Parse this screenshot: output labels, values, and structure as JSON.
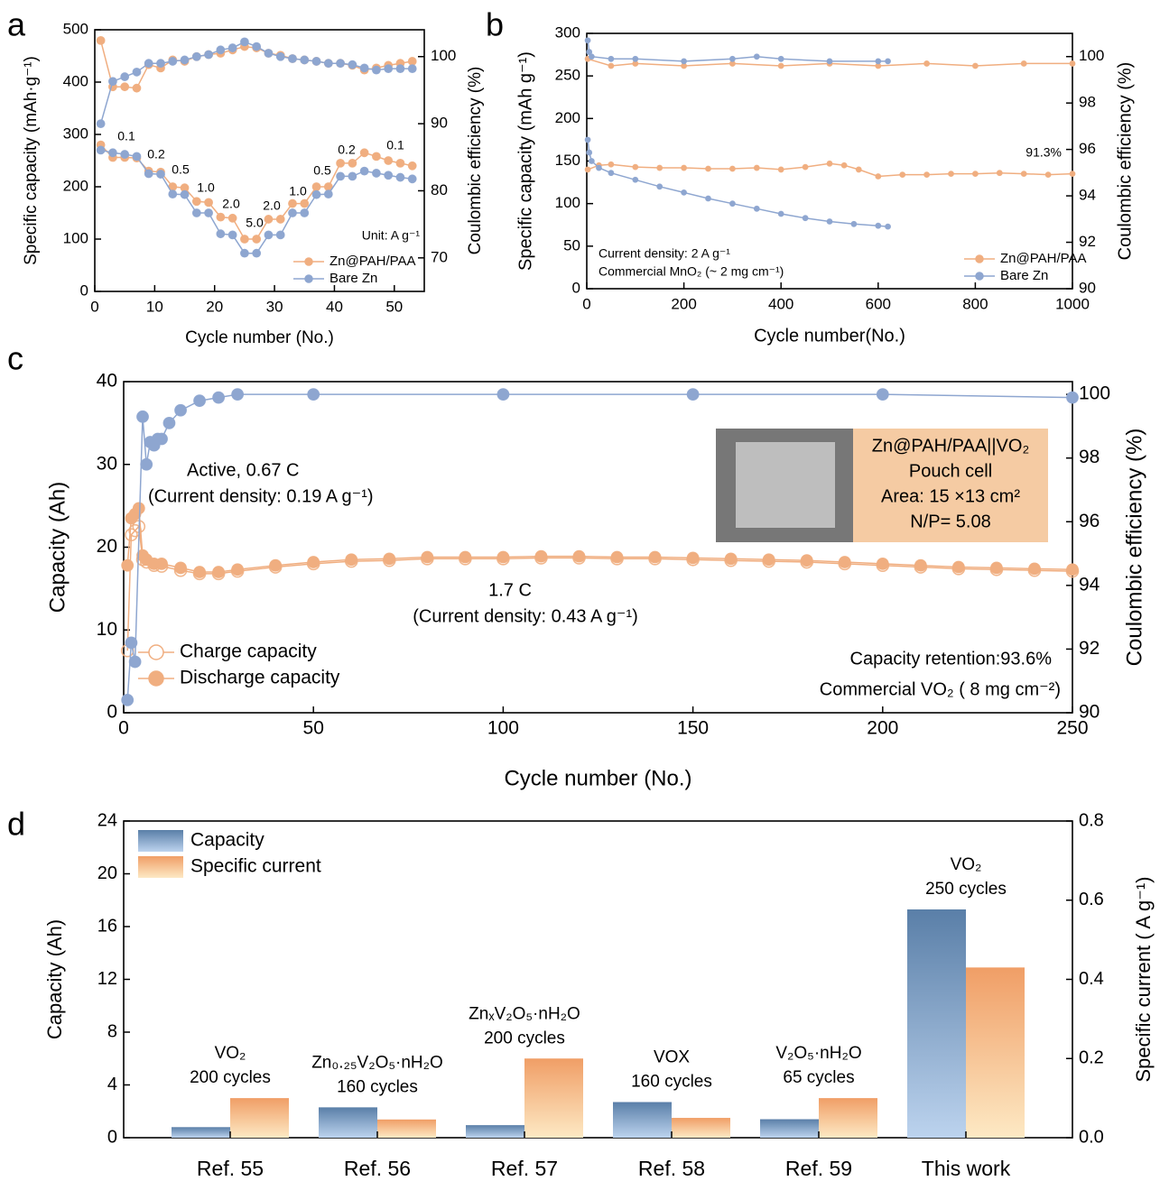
{
  "chart_data": [
    {
      "type": "line",
      "panel": "a",
      "x_label": "Cycle number (No.)",
      "y_label": "Specific capacity (mAh·g⁻¹)",
      "y2_label": "Coulombic efficiency (%)",
      "xlim": [
        0,
        55
      ],
      "xticks": [
        0,
        10,
        20,
        30,
        40,
        50
      ],
      "ylim": [
        0,
        500
      ],
      "yticks": [
        0,
        100,
        200,
        300,
        400,
        500
      ],
      "y2lim": [
        65,
        104
      ],
      "y2ticks": [
        70,
        80,
        90,
        100
      ],
      "legend": "lower right",
      "annotations": [
        "0.1",
        "0.2",
        "0.5",
        "1.0",
        "2.0",
        "5.0",
        "2.0",
        "1.0",
        "0.5",
        "0.2",
        "0.1",
        "Unit: A g⁻¹"
      ],
      "series": [
        {
          "name": "Zn@PAH/PAA",
          "color": "#f0ae80",
          "marker": "filled",
          "x": [
            1,
            3,
            5,
            7,
            9,
            11,
            13,
            15,
            17,
            19,
            21,
            23,
            25,
            27,
            29,
            31,
            33,
            35,
            37,
            39,
            41,
            43,
            45,
            47,
            49,
            51,
            53
          ],
          "values": [
            280,
            256,
            256,
            255,
            230,
            228,
            200,
            198,
            172,
            170,
            142,
            140,
            100,
            100,
            138,
            138,
            168,
            168,
            200,
            200,
            245,
            245,
            265,
            258,
            250,
            245,
            240
          ]
        },
        {
          "name": "Bare Zn",
          "color": "#8ea6d0",
          "marker": "filled",
          "x": [
            1,
            3,
            5,
            7,
            9,
            11,
            13,
            15,
            17,
            19,
            21,
            23,
            25,
            27,
            29,
            31,
            33,
            35,
            37,
            39,
            41,
            43,
            45,
            47,
            49,
            51,
            53
          ],
          "values": [
            270,
            265,
            262,
            258,
            225,
            224,
            186,
            185,
            150,
            150,
            110,
            108,
            73,
            73,
            108,
            108,
            150,
            150,
            185,
            186,
            220,
            220,
            230,
            226,
            222,
            218,
            215
          ]
        },
        {
          "color": "#f0ae80",
          "marker": "filled",
          "axis": "y2",
          "x": [
            1,
            3,
            5,
            7,
            9,
            11,
            13,
            15,
            17,
            19,
            21,
            23,
            25,
            27,
            29,
            31,
            33,
            35,
            37,
            39,
            41,
            43,
            45,
            47,
            49,
            51,
            53
          ],
          "values": [
            102.4,
            95.5,
            95.5,
            95.3,
            98.8,
            98.3,
            99.5,
            99.3,
            100,
            100.3,
            100.5,
            101,
            101.5,
            101.3,
            100.5,
            100.2,
            99.7,
            99.5,
            99.3,
            99,
            99,
            98.7,
            98,
            98.3,
            98.7,
            99,
            99.3
          ]
        },
        {
          "color": "#8ea6d0",
          "marker": "filled",
          "axis": "y2",
          "x": [
            1,
            3,
            5,
            7,
            9,
            11,
            13,
            15,
            17,
            19,
            21,
            23,
            25,
            27,
            29,
            31,
            33,
            35,
            37,
            39,
            41,
            43,
            45,
            47,
            49,
            51,
            53
          ],
          "values": [
            90,
            96.3,
            97,
            97.7,
            99,
            99,
            99.3,
            99.5,
            100,
            100.3,
            101,
            101.3,
            102.2,
            101.5,
            100.5,
            100,
            99.7,
            99.5,
            99.3,
            99,
            99,
            98.8,
            98.3,
            98,
            98.2,
            98.2,
            98.2
          ]
        }
      ]
    },
    {
      "type": "line",
      "panel": "b",
      "x_label": "Cycle number(No.)",
      "y_label": "Specific capacity (mAh g⁻¹)",
      "y2_label": "Coulombic efficiency (%)",
      "xlim": [
        0,
        1000
      ],
      "xticks": [
        0,
        200,
        400,
        600,
        800,
        1000
      ],
      "ylim": [
        0,
        300
      ],
      "yticks": [
        0,
        50,
        100,
        150,
        200,
        250,
        300
      ],
      "y2lim": [
        90,
        101
      ],
      "y2ticks": [
        90,
        92,
        94,
        96,
        98,
        100
      ],
      "legend": "lower right",
      "annotations": [
        "91.3%",
        "Current density: 2 A g⁻¹",
        "Commercial MnO₂ (~ 2 mg cm⁻¹)"
      ],
      "series": [
        {
          "name": "Zn@PAH/PAA",
          "color": "#f0ae80",
          "marker": "filled",
          "x": [
            2,
            25,
            50,
            100,
            150,
            200,
            250,
            300,
            350,
            400,
            450,
            500,
            530,
            560,
            600,
            650,
            700,
            750,
            800,
            850,
            900,
            950,
            1000
          ],
          "values": [
            140,
            145,
            146,
            143,
            142,
            142,
            141,
            141,
            142,
            140,
            143,
            147,
            145,
            140,
            132,
            134,
            134,
            135,
            135,
            136,
            135,
            134,
            135
          ]
        },
        {
          "name": "Bare Zn",
          "color": "#8ea6d0",
          "marker": "filled",
          "x": [
            2,
            5,
            10,
            25,
            50,
            100,
            150,
            200,
            250,
            300,
            350,
            400,
            450,
            500,
            550,
            600,
            620
          ],
          "values": [
            175,
            160,
            150,
            142,
            136,
            128,
            120,
            113,
            106,
            100,
            94,
            88,
            83,
            79,
            76,
            74,
            73
          ]
        },
        {
          "color": "#f0ae80",
          "marker": "filled",
          "axis": "y2",
          "x": [
            2,
            50,
            100,
            200,
            300,
            400,
            500,
            600,
            700,
            800,
            900,
            1000
          ],
          "values": [
            99.9,
            99.6,
            99.7,
            99.6,
            99.7,
            99.6,
            99.7,
            99.6,
            99.7,
            99.6,
            99.7,
            99.7
          ]
        },
        {
          "color": "#8ea6d0",
          "marker": "filled",
          "axis": "y2",
          "x": [
            2,
            5,
            10,
            50,
            100,
            200,
            300,
            350,
            400,
            500,
            600,
            620
          ],
          "values": [
            100.7,
            100.2,
            100,
            99.9,
            99.9,
            99.8,
            99.9,
            100,
            99.9,
            99.8,
            99.8,
            99.8
          ]
        }
      ]
    },
    {
      "type": "line",
      "panel": "c",
      "x_label": "Cycle number (No.)",
      "y_label": "Capacity (Ah)",
      "y2_label": "Coulombic efficiency (%)",
      "xlim": [
        0,
        250
      ],
      "xticks": [
        0,
        50,
        100,
        150,
        200,
        250
      ],
      "ylim": [
        0,
        40
      ],
      "yticks": [
        0,
        10,
        20,
        30,
        40
      ],
      "y2lim": [
        90,
        100.4
      ],
      "y2ticks": [
        90,
        92,
        94,
        96,
        98,
        100
      ],
      "legend": "lower left",
      "annotations": [
        "Active, 0.67 C",
        "(Current density: 0.19 A g⁻¹)",
        "1.7 C",
        "(Current density: 0.43 A g⁻¹)",
        "Capacity retention:93.6%",
        "Commercial VO₂ ( 8 mg cm⁻²)"
      ],
      "inset": [
        "Zn@PAH/PAA||VO₂",
        "Pouch cell",
        "Area: 15 ×13 cm²",
        "N/P= 5.08"
      ],
      "series": [
        {
          "name": "Charge capacity",
          "color": "#f0ae80",
          "marker": "open",
          "x": [
            1,
            2,
            3,
            4,
            5,
            6,
            8,
            10,
            15,
            20,
            25,
            30,
            40,
            50,
            60,
            70,
            80,
            90,
            100,
            110,
            120,
            130,
            140,
            150,
            160,
            170,
            180,
            190,
            200,
            210,
            220,
            230,
            240,
            250
          ],
          "values": [
            7.5,
            21.5,
            22,
            22.5,
            18.5,
            18.2,
            17.8,
            17.7,
            17.2,
            16.8,
            16.8,
            17.1,
            17.6,
            18,
            18.3,
            18.4,
            18.6,
            18.6,
            18.6,
            18.7,
            18.7,
            18.6,
            18.6,
            18.5,
            18.4,
            18.3,
            18.2,
            18,
            17.8,
            17.6,
            17.4,
            17.3,
            17.2,
            17.1
          ]
        },
        {
          "name": "Discharge capacity",
          "color": "#f0ae80",
          "marker": "filled",
          "x": [
            1,
            2,
            3,
            4,
            5,
            6,
            8,
            10,
            15,
            20,
            25,
            30,
            40,
            50,
            60,
            70,
            80,
            90,
            100,
            110,
            120,
            130,
            140,
            150,
            160,
            170,
            180,
            190,
            200,
            210,
            220,
            230,
            240,
            250
          ],
          "values": [
            17.8,
            23.5,
            24,
            24.7,
            19,
            18.5,
            18,
            18,
            17.5,
            17,
            17,
            17.3,
            17.8,
            18.2,
            18.5,
            18.6,
            18.8,
            18.8,
            18.8,
            18.9,
            18.9,
            18.8,
            18.8,
            18.7,
            18.6,
            18.5,
            18.4,
            18.2,
            18,
            17.8,
            17.6,
            17.5,
            17.4,
            17.3
          ]
        },
        {
          "color": "#8ea6d0",
          "marker": "filled",
          "axis": "y2",
          "x": [
            1,
            2,
            3,
            5,
            6,
            7,
            8,
            9,
            10,
            12,
            15,
            20,
            25,
            30,
            50,
            100,
            150,
            200,
            250
          ],
          "values": [
            90.4,
            92.2,
            91.6,
            99.3,
            97.8,
            98.5,
            98.4,
            98.6,
            98.6,
            99.1,
            99.5,
            99.8,
            99.9,
            100,
            100,
            100,
            100,
            100,
            99.9
          ]
        }
      ]
    },
    {
      "type": "bar",
      "panel": "d",
      "y_label": "Capacity (Ah)",
      "y2_label": "Specific current ( A g⁻¹)",
      "categories": [
        "Ref. 55",
        "Ref. 56",
        "Ref. 57",
        "Ref. 58",
        "Ref. 59",
        "This work"
      ],
      "label_colors": [
        "#000000",
        "#000000",
        "#000000",
        "#000000",
        "#000000",
        "#e02520"
      ],
      "bar_labels": [
        [
          "VO₂",
          "200 cycles"
        ],
        [
          "Zn₀.₂₅V₂O₅·nH₂O",
          "160 cycles"
        ],
        [
          "ZnₓV₂O₅·nH₂O",
          "200 cycles"
        ],
        [
          "VOX",
          "160 cycles"
        ],
        [
          "V₂O₅·nH₂O",
          "65 cycles"
        ],
        [
          "VO₂",
          "250 cycles"
        ]
      ],
      "ylim": [
        0,
        24
      ],
      "yticks": [
        0,
        4,
        8,
        12,
        16,
        20,
        24
      ],
      "y2lim": [
        0,
        0.8
      ],
      "y2ticks": [
        {
          "value": 0,
          "label": "0.0"
        },
        0.2,
        0.4,
        0.6,
        0.8
      ],
      "legend": "upper left",
      "series": [
        {
          "name": "Capacity",
          "color": "#5a7fa8",
          "color_light": "#bcd3ee",
          "values": [
            0.8,
            2.3,
            0.95,
            2.7,
            1.4,
            17.3
          ]
        },
        {
          "name": "Specific current",
          "color": "#f09e66",
          "color_light": "#fde9c4",
          "axis": "y2",
          "values": [
            0.1,
            0.046,
            0.2,
            0.05,
            0.1,
            0.43
          ]
        }
      ]
    }
  ]
}
